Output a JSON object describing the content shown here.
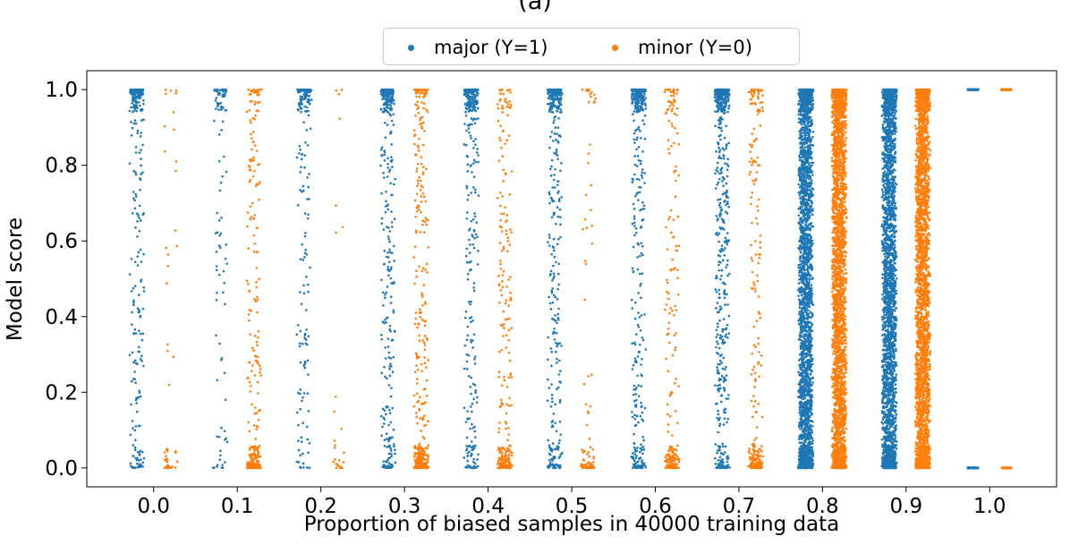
{
  "title": "(a)",
  "legend": [
    {
      "label": "major (Y=1)",
      "color": "#1f77b4"
    },
    {
      "label": "minor (Y=0)",
      "color": "#ff7f0e"
    }
  ],
  "chart_data": {
    "type": "scatter",
    "title": "(a)",
    "xlabel": "Proportion of biased samples in 40000 training data",
    "ylabel": "Model score",
    "xlim": [
      -0.08,
      1.08
    ],
    "ylim": [
      -0.05,
      1.05
    ],
    "xticks": [
      "0.0",
      "0.1",
      "0.2",
      "0.3",
      "0.4",
      "0.5",
      "0.6",
      "0.7",
      "0.8",
      "0.9",
      "1.0"
    ],
    "yticks": [
      "0.0",
      "0.2",
      "0.4",
      "0.6",
      "0.8",
      "1.0"
    ],
    "grid": false,
    "legend_position": "top-center",
    "x_jitter": 0.02,
    "series": [
      {
        "name": "major (Y=1)",
        "color": "#1f77b4",
        "x_offset": -0.02,
        "points_per_group": [
          300,
          110,
          200,
          380,
          380,
          400,
          420,
          640,
          2600,
          2600,
          60
        ]
      },
      {
        "name": "minor (Y=0)",
        "color": "#ff7f0e",
        "x_offset": 0.02,
        "points_per_group": [
          50,
          300,
          25,
          420,
          280,
          90,
          250,
          280,
          2800,
          2800,
          60
        ]
      }
    ]
  }
}
